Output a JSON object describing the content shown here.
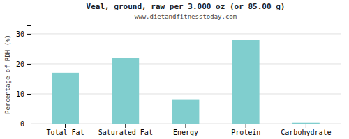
{
  "chart_data": {
    "type": "bar",
    "title": "Veal, ground, raw per 3.000 oz (or 85.00 g)",
    "subtitle": "www.dietandfitnesstoday.com",
    "categories": [
      "Total-Fat",
      "Saturated-Fat",
      "Energy",
      "Protein",
      "Carbohydrate"
    ],
    "values": [
      17,
      22,
      8,
      28,
      0.3
    ],
    "color": "#80CECE",
    "ylabel": "Percentage of RDH (%)",
    "ylim": [
      0,
      33
    ],
    "yticks": [
      0,
      10,
      20,
      30
    ],
    "grid": true
  }
}
